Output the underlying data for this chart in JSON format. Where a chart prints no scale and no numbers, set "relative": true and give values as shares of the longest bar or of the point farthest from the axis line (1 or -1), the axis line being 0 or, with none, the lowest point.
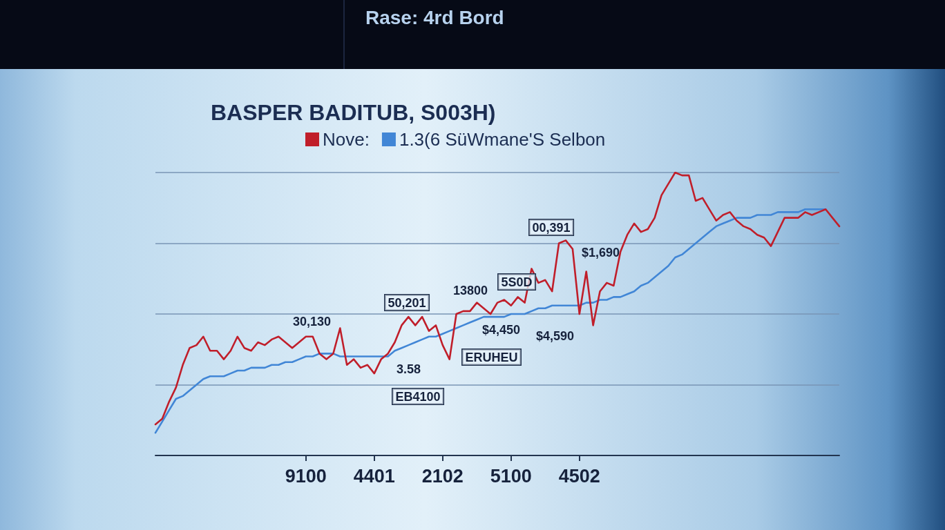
{
  "chart_data": {
    "type": "line",
    "title": "BASPER BADITUB, S003H)",
    "annotations": [
      "Rase: 4rd Bord",
      "00,391",
      "$1,690",
      "5S0D",
      "13800",
      "50,201",
      "$4,450",
      "$4,590",
      "30,130",
      "ERUHEU",
      "3.58",
      "EB4100"
    ],
    "categories": [
      null,
      null,
      null,
      null,
      null,
      null,
      null,
      null,
      null,
      null,
      null,
      null,
      null,
      null,
      null,
      null,
      null,
      null,
      null,
      null,
      null,
      null,
      "9100",
      null,
      null,
      null,
      null,
      null,
      null,
      null,
      null,
      null,
      "4401",
      null,
      null,
      null,
      null,
      null,
      null,
      null,
      null,
      null,
      "2102",
      null,
      null,
      null,
      null,
      null,
      null,
      null,
      null,
      null,
      "5100",
      null,
      null,
      null,
      null,
      null,
      null,
      null,
      null,
      null,
      "4502",
      null,
      null,
      null,
      null,
      null,
      null,
      null,
      null,
      null,
      null,
      null,
      null,
      null,
      null,
      null,
      null,
      null,
      null,
      null,
      null,
      null,
      null,
      null,
      null,
      null,
      null,
      null,
      null,
      null,
      null,
      null,
      null,
      null,
      null,
      null,
      null,
      null,
      null
    ],
    "series": [
      {
        "name": "Nove:",
        "color": "#c01e2a",
        "values": [
          0.11,
          0.13,
          0.19,
          0.24,
          0.32,
          0.38,
          0.39,
          0.42,
          0.37,
          0.37,
          0.34,
          0.37,
          0.42,
          0.38,
          0.37,
          0.4,
          0.39,
          0.41,
          0.42,
          0.4,
          0.38,
          0.4,
          0.42,
          0.42,
          0.36,
          0.34,
          0.36,
          0.45,
          0.32,
          0.34,
          0.31,
          0.32,
          0.29,
          0.34,
          0.36,
          0.4,
          0.46,
          0.49,
          0.46,
          0.49,
          0.44,
          0.46,
          0.39,
          0.34,
          0.5,
          0.51,
          0.51,
          0.54,
          0.52,
          0.5,
          0.54,
          0.55,
          0.53,
          0.56,
          0.54,
          0.66,
          0.61,
          0.62,
          0.58,
          0.75,
          0.76,
          0.73,
          0.5,
          0.65,
          0.46,
          0.58,
          0.61,
          0.6,
          0.72,
          0.78,
          0.82,
          0.79,
          0.8,
          0.84,
          0.92,
          0.96,
          1,
          0.99,
          0.99,
          0.9,
          0.91,
          0.87,
          0.83,
          0.85,
          0.86,
          0.83,
          0.81,
          0.8,
          0.78,
          0.77,
          0.74,
          0.79,
          0.84,
          0.84,
          0.84,
          0.86,
          0.85,
          0.86,
          0.87,
          0.84,
          0.81
        ]
      },
      {
        "name": "1.3(6 SüWmane'S Selbon",
        "color": "#4186d6",
        "values": [
          0.08,
          0.12,
          0.16,
          0.2,
          0.21,
          0.23,
          0.25,
          0.27,
          0.28,
          0.28,
          0.28,
          0.29,
          0.3,
          0.3,
          0.31,
          0.31,
          0.31,
          0.32,
          0.32,
          0.33,
          0.33,
          0.34,
          0.35,
          0.35,
          0.36,
          0.36,
          0.36,
          0.35,
          0.35,
          0.35,
          0.35,
          0.35,
          0.35,
          0.35,
          0.35,
          0.37,
          0.38,
          0.39,
          0.4,
          0.41,
          0.42,
          0.42,
          0.43,
          0.44,
          0.45,
          0.46,
          0.47,
          0.48,
          0.49,
          0.49,
          0.49,
          0.49,
          0.5,
          0.5,
          0.5,
          0.51,
          0.52,
          0.52,
          0.53,
          0.53,
          0.53,
          0.53,
          0.53,
          0.54,
          0.54,
          0.55,
          0.55,
          0.56,
          0.56,
          0.57,
          0.58,
          0.6,
          0.61,
          0.63,
          0.65,
          0.67,
          0.7,
          0.71,
          0.73,
          0.75,
          0.77,
          0.79,
          0.81,
          0.82,
          0.83,
          0.84,
          0.84,
          0.84,
          0.85,
          0.85,
          0.85,
          0.86,
          0.86,
          0.86,
          0.86,
          0.87,
          0.87,
          0.87,
          0.87,
          null,
          null
        ]
      }
    ],
    "ref_lines": [
      {
        "axis": "y",
        "value": 0.25,
        "color": "#7894b4"
      },
      {
        "axis": "y",
        "value": 0.5,
        "color": "#7894b4"
      },
      {
        "axis": "y",
        "value": 0.75,
        "color": "#7894b4"
      },
      {
        "axis": "y",
        "value": 1,
        "color": "#7894b4"
      }
    ],
    "relative": true,
    "legend": "top left"
  }
}
